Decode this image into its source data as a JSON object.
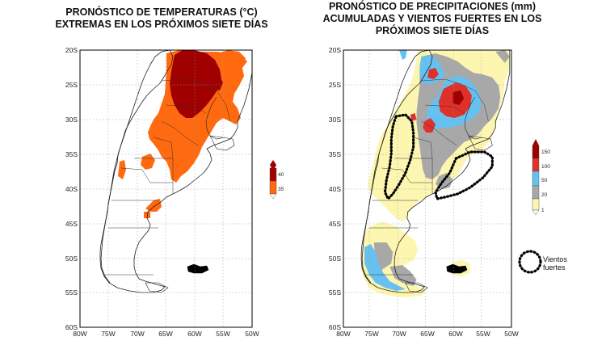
{
  "left_panel": {
    "title_line1": "PRONÓSTICO DE TEMPERATURAS (°C)",
    "title_line2": "EXTREMAS EN LOS PRÓXIMOS SIETE DÍAS",
    "legend": {
      "levels": [
        "40",
        "35"
      ],
      "colors": [
        "#a00000",
        "#ff6a10"
      ]
    }
  },
  "right_panel": {
    "title_line1": "PRONÓSTICO DE PRECIPITACIONES (mm)",
    "title_line2": "ACUMULADAS Y VIENTOS FUERTES EN LOS",
    "title_line3": "PRÓXIMOS SIETE DÍAS",
    "legend": {
      "levels": [
        "150",
        "100",
        "50",
        "20",
        "1"
      ],
      "colors": [
        "#9c0000",
        "#e0302a",
        "#66c0f0",
        "#a8a8a8",
        "#fdf6b0"
      ]
    },
    "wind_label_line1": "Vientos",
    "wind_label_line2": "fuertes"
  },
  "axes": {
    "lat_ticks": [
      "20S",
      "25S",
      "30S",
      "35S",
      "40S",
      "45S",
      "50S",
      "55S",
      "60S"
    ],
    "lon_ticks": [
      "80W",
      "75W",
      "70W",
      "65W",
      "60W",
      "55W",
      "50W"
    ]
  }
}
